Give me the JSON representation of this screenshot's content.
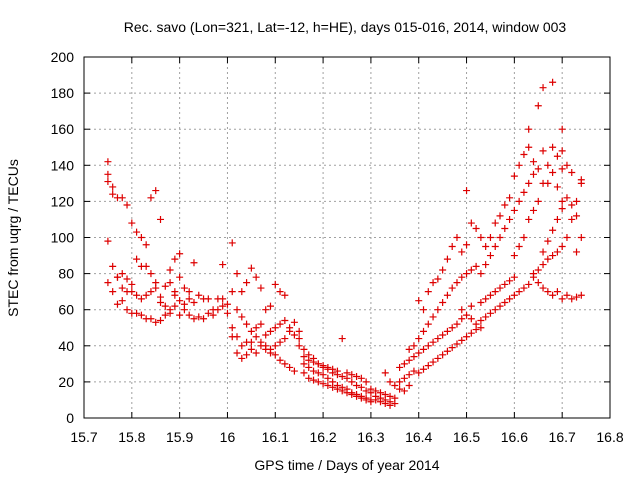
{
  "chart_data": {
    "type": "scatter",
    "title": "Rec. savo (Lon=321, Lat=-12, h=HE), days 015-016, 2014, window 003",
    "xlabel": "GPS time / Days of year 2014",
    "ylabel": "STEC from uqrg / TECUs",
    "xlim": [
      15.7,
      16.8
    ],
    "ylim": [
      0,
      200
    ],
    "xticks": [
      "15.7",
      "15.8",
      "15.9",
      "16",
      "16.1",
      "16.2",
      "16.3",
      "16.4",
      "16.5",
      "16.6",
      "16.7",
      "16.8"
    ],
    "yticks": [
      "0",
      "20",
      "40",
      "60",
      "80",
      "100",
      "120",
      "140",
      "160",
      "180",
      "200"
    ],
    "grid": true,
    "legend": "none",
    "marker": "+",
    "color": "#dd0000",
    "points": [
      [
        15.75,
        142
      ],
      [
        15.75,
        135
      ],
      [
        15.75,
        131
      ],
      [
        15.76,
        128
      ],
      [
        15.76,
        124
      ],
      [
        15.77,
        122
      ],
      [
        15.78,
        122
      ],
      [
        15.79,
        118
      ],
      [
        15.8,
        108
      ],
      [
        15.81,
        103
      ],
      [
        15.82,
        100
      ],
      [
        15.83,
        96
      ],
      [
        15.84,
        122
      ],
      [
        15.85,
        126
      ],
      [
        15.86,
        110
      ],
      [
        15.75,
        98
      ],
      [
        15.76,
        84
      ],
      [
        15.77,
        78
      ],
      [
        15.78,
        80
      ],
      [
        15.79,
        77
      ],
      [
        15.8,
        74
      ],
      [
        15.81,
        88
      ],
      [
        15.82,
        84
      ],
      [
        15.83,
        84
      ],
      [
        15.84,
        80
      ],
      [
        15.85,
        72
      ],
      [
        15.86,
        67
      ],
      [
        15.87,
        73
      ],
      [
        15.88,
        82
      ],
      [
        15.89,
        88
      ],
      [
        15.75,
        75
      ],
      [
        15.76,
        70
      ],
      [
        15.77,
        63
      ],
      [
        15.78,
        65
      ],
      [
        15.79,
        60
      ],
      [
        15.8,
        58
      ],
      [
        15.81,
        58
      ],
      [
        15.82,
        57
      ],
      [
        15.83,
        55
      ],
      [
        15.84,
        55
      ],
      [
        15.85,
        53
      ],
      [
        15.86,
        54
      ],
      [
        15.87,
        57
      ],
      [
        15.88,
        60
      ],
      [
        15.77,
        78
      ],
      [
        15.78,
        72
      ],
      [
        15.79,
        70
      ],
      [
        15.8,
        70
      ],
      [
        15.81,
        68
      ],
      [
        15.82,
        66
      ],
      [
        15.83,
        68
      ],
      [
        15.84,
        70
      ],
      [
        15.85,
        75
      ],
      [
        15.86,
        64
      ],
      [
        15.87,
        62
      ],
      [
        15.88,
        58
      ],
      [
        15.89,
        62
      ],
      [
        15.9,
        57
      ],
      [
        15.91,
        60
      ],
      [
        15.92,
        57
      ],
      [
        15.93,
        55
      ],
      [
        15.94,
        56
      ],
      [
        15.95,
        55
      ],
      [
        15.96,
        58
      ],
      [
        15.97,
        57
      ],
      [
        15.98,
        60
      ],
      [
        15.99,
        62
      ],
      [
        16.0,
        58
      ],
      [
        15.89,
        68
      ],
      [
        15.9,
        65
      ],
      [
        15.91,
        63
      ],
      [
        15.92,
        66
      ],
      [
        15.93,
        64
      ],
      [
        15.94,
        68
      ],
      [
        15.95,
        66
      ],
      [
        15.96,
        66
      ],
      [
        15.97,
        60
      ],
      [
        15.98,
        66
      ],
      [
        15.99,
        66
      ],
      [
        16.0,
        63
      ],
      [
        15.88,
        75
      ],
      [
        15.89,
        70
      ],
      [
        15.9,
        78
      ],
      [
        15.91,
        72
      ],
      [
        15.92,
        70
      ],
      [
        15.9,
        91
      ],
      [
        15.93,
        86
      ],
      [
        15.99,
        85
      ],
      [
        16.01,
        70
      ],
      [
        16.02,
        60
      ],
      [
        16.03,
        56
      ],
      [
        16.04,
        52
      ],
      [
        16.05,
        48
      ],
      [
        16.06,
        45
      ],
      [
        16.07,
        42
      ],
      [
        16.08,
        40
      ],
      [
        16.09,
        38
      ],
      [
        16.1,
        35
      ],
      [
        16.11,
        32
      ],
      [
        16.12,
        30
      ],
      [
        16.13,
        28
      ],
      [
        16.14,
        26
      ],
      [
        16.01,
        97
      ],
      [
        16.02,
        80
      ],
      [
        16.03,
        70
      ],
      [
        16.04,
        75
      ],
      [
        16.05,
        83
      ],
      [
        16.06,
        78
      ],
      [
        16.07,
        72
      ],
      [
        16.08,
        60
      ],
      [
        16.09,
        62
      ],
      [
        16.1,
        74
      ],
      [
        16.11,
        70
      ],
      [
        16.12,
        68
      ],
      [
        16.01,
        50
      ],
      [
        16.02,
        45
      ],
      [
        16.03,
        40
      ],
      [
        16.04,
        42
      ],
      [
        16.05,
        38
      ],
      [
        16.06,
        36
      ],
      [
        16.07,
        40
      ],
      [
        16.08,
        38
      ],
      [
        16.09,
        36
      ],
      [
        16.1,
        40
      ],
      [
        16.11,
        42
      ],
      [
        16.12,
        44
      ],
      [
        16.13,
        48
      ],
      [
        16.14,
        53
      ],
      [
        16.15,
        48
      ],
      [
        16.01,
        45
      ],
      [
        16.02,
        36
      ],
      [
        16.03,
        33
      ],
      [
        16.04,
        35
      ],
      [
        16.05,
        42
      ],
      [
        16.06,
        50
      ],
      [
        16.07,
        52
      ],
      [
        16.08,
        46
      ],
      [
        16.09,
        48
      ],
      [
        16.1,
        50
      ],
      [
        16.11,
        52
      ],
      [
        16.12,
        54
      ],
      [
        16.13,
        50
      ],
      [
        16.14,
        46
      ],
      [
        16.15,
        44
      ],
      [
        16.16,
        38
      ],
      [
        16.17,
        35
      ],
      [
        16.18,
        33
      ],
      [
        16.19,
        30
      ],
      [
        16.2,
        28
      ],
      [
        16.21,
        27
      ],
      [
        16.22,
        25
      ],
      [
        16.23,
        24
      ],
      [
        16.24,
        23
      ],
      [
        16.25,
        22
      ],
      [
        16.26,
        20
      ],
      [
        16.27,
        18
      ],
      [
        16.28,
        17
      ],
      [
        16.29,
        15
      ],
      [
        16.3,
        14
      ],
      [
        16.16,
        30
      ],
      [
        16.17,
        28
      ],
      [
        16.18,
        26
      ],
      [
        16.19,
        25
      ],
      [
        16.2,
        24
      ],
      [
        16.21,
        22
      ],
      [
        16.22,
        20
      ],
      [
        16.23,
        18
      ],
      [
        16.24,
        17
      ],
      [
        16.25,
        16
      ],
      [
        16.26,
        14
      ],
      [
        16.27,
        13
      ],
      [
        16.28,
        12
      ],
      [
        16.29,
        11
      ],
      [
        16.3,
        10
      ],
      [
        16.16,
        25
      ],
      [
        16.17,
        22
      ],
      [
        16.18,
        21
      ],
      [
        16.19,
        20
      ],
      [
        16.2,
        19
      ],
      [
        16.21,
        18
      ],
      [
        16.22,
        17
      ],
      [
        16.23,
        16
      ],
      [
        16.24,
        15
      ],
      [
        16.25,
        14
      ],
      [
        16.26,
        13
      ],
      [
        16.27,
        12
      ],
      [
        16.28,
        11
      ],
      [
        16.29,
        10
      ],
      [
        16.3,
        9
      ],
      [
        16.15,
        40
      ],
      [
        16.16,
        34
      ],
      [
        16.17,
        32
      ],
      [
        16.18,
        31
      ],
      [
        16.19,
        30
      ],
      [
        16.2,
        29
      ],
      [
        16.21,
        28
      ],
      [
        16.22,
        27
      ],
      [
        16.23,
        26
      ],
      [
        16.24,
        44
      ],
      [
        16.25,
        25
      ],
      [
        16.26,
        24
      ],
      [
        16.27,
        23
      ],
      [
        16.28,
        22
      ],
      [
        16.29,
        20
      ],
      [
        16.3,
        16
      ],
      [
        16.31,
        15
      ],
      [
        16.32,
        14
      ],
      [
        16.33,
        13
      ],
      [
        16.34,
        12
      ],
      [
        16.35,
        11
      ],
      [
        16.31,
        12
      ],
      [
        16.32,
        11
      ],
      [
        16.33,
        10
      ],
      [
        16.34,
        9
      ],
      [
        16.35,
        8
      ],
      [
        16.31,
        10
      ],
      [
        16.32,
        9
      ],
      [
        16.33,
        8
      ],
      [
        16.34,
        7
      ],
      [
        16.33,
        25
      ],
      [
        16.34,
        20
      ],
      [
        16.35,
        18
      ],
      [
        16.36,
        16
      ],
      [
        16.37,
        15
      ],
      [
        16.38,
        18
      ],
      [
        16.36,
        20
      ],
      [
        16.37,
        22
      ],
      [
        16.38,
        24
      ],
      [
        16.39,
        26
      ],
      [
        16.36,
        28
      ],
      [
        16.37,
        30
      ],
      [
        16.38,
        32
      ],
      [
        16.39,
        34
      ],
      [
        16.4,
        36
      ],
      [
        16.41,
        38
      ],
      [
        16.42,
        40
      ],
      [
        16.43,
        42
      ],
      [
        16.44,
        44
      ],
      [
        16.45,
        46
      ],
      [
        16.46,
        48
      ],
      [
        16.47,
        50
      ],
      [
        16.48,
        52
      ],
      [
        16.49,
        55
      ],
      [
        16.5,
        57
      ],
      [
        16.38,
        38
      ],
      [
        16.39,
        40
      ],
      [
        16.4,
        44
      ],
      [
        16.41,
        48
      ],
      [
        16.42,
        52
      ],
      [
        16.43,
        56
      ],
      [
        16.44,
        60
      ],
      [
        16.45,
        64
      ],
      [
        16.46,
        68
      ],
      [
        16.47,
        72
      ],
      [
        16.48,
        75
      ],
      [
        16.49,
        78
      ],
      [
        16.5,
        80
      ],
      [
        16.51,
        82
      ],
      [
        16.52,
        84
      ],
      [
        16.4,
        25
      ],
      [
        16.41,
        27
      ],
      [
        16.42,
        29
      ],
      [
        16.43,
        31
      ],
      [
        16.44,
        33
      ],
      [
        16.45,
        35
      ],
      [
        16.46,
        37
      ],
      [
        16.47,
        39
      ],
      [
        16.48,
        41
      ],
      [
        16.49,
        43
      ],
      [
        16.5,
        45
      ],
      [
        16.51,
        47
      ],
      [
        16.52,
        49
      ],
      [
        16.53,
        50
      ],
      [
        16.4,
        65
      ],
      [
        16.41,
        60
      ],
      [
        16.42,
        70
      ],
      [
        16.43,
        75
      ],
      [
        16.44,
        77
      ],
      [
        16.45,
        82
      ],
      [
        16.46,
        88
      ],
      [
        16.47,
        95
      ],
      [
        16.48,
        100
      ],
      [
        16.49,
        92
      ],
      [
        16.5,
        96
      ],
      [
        16.51,
        108
      ],
      [
        16.52,
        105
      ],
      [
        16.53,
        100
      ],
      [
        16.54,
        95
      ],
      [
        16.5,
        126
      ],
      [
        16.49,
        60
      ],
      [
        16.51,
        62
      ],
      [
        16.53,
        64
      ],
      [
        16.54,
        66
      ],
      [
        16.55,
        68
      ],
      [
        16.56,
        70
      ],
      [
        16.57,
        72
      ],
      [
        16.58,
        74
      ],
      [
        16.59,
        76
      ],
      [
        16.6,
        78
      ],
      [
        16.51,
        55
      ],
      [
        16.52,
        52
      ],
      [
        16.53,
        54
      ],
      [
        16.54,
        56
      ],
      [
        16.55,
        58
      ],
      [
        16.56,
        60
      ],
      [
        16.57,
        62
      ],
      [
        16.58,
        64
      ],
      [
        16.59,
        66
      ],
      [
        16.6,
        68
      ],
      [
        16.61,
        70
      ],
      [
        16.62,
        72
      ],
      [
        16.63,
        74
      ],
      [
        16.53,
        80
      ],
      [
        16.54,
        85
      ],
      [
        16.55,
        90
      ],
      [
        16.56,
        95
      ],
      [
        16.57,
        100
      ],
      [
        16.58,
        105
      ],
      [
        16.59,
        110
      ],
      [
        16.6,
        115
      ],
      [
        16.61,
        120
      ],
      [
        16.62,
        125
      ],
      [
        16.63,
        130
      ],
      [
        16.64,
        135
      ],
      [
        16.55,
        100
      ],
      [
        16.56,
        108
      ],
      [
        16.57,
        112
      ],
      [
        16.58,
        118
      ],
      [
        16.59,
        122
      ],
      [
        16.6,
        134
      ],
      [
        16.61,
        140
      ],
      [
        16.62,
        146
      ],
      [
        16.63,
        150
      ],
      [
        16.64,
        142
      ],
      [
        16.65,
        138
      ],
      [
        16.6,
        90
      ],
      [
        16.61,
        95
      ],
      [
        16.62,
        100
      ],
      [
        16.63,
        110
      ],
      [
        16.64,
        115
      ],
      [
        16.65,
        120
      ],
      [
        16.66,
        130
      ],
      [
        16.67,
        140
      ],
      [
        16.68,
        150
      ],
      [
        16.69,
        145
      ],
      [
        16.7,
        138
      ],
      [
        16.63,
        160
      ],
      [
        16.65,
        173
      ],
      [
        16.66,
        183
      ],
      [
        16.68,
        186
      ],
      [
        16.7,
        160
      ],
      [
        16.66,
        148
      ],
      [
        16.67,
        130
      ],
      [
        16.68,
        136
      ],
      [
        16.69,
        128
      ],
      [
        16.7,
        120
      ],
      [
        16.64,
        80
      ],
      [
        16.65,
        82
      ],
      [
        16.66,
        85
      ],
      [
        16.67,
        88
      ],
      [
        16.68,
        90
      ],
      [
        16.69,
        92
      ],
      [
        16.7,
        95
      ],
      [
        16.71,
        100
      ],
      [
        16.72,
        110
      ],
      [
        16.73,
        120
      ],
      [
        16.74,
        130
      ],
      [
        16.64,
        78
      ],
      [
        16.65,
        75
      ],
      [
        16.66,
        72
      ],
      [
        16.67,
        70
      ],
      [
        16.68,
        68
      ],
      [
        16.69,
        70
      ],
      [
        16.7,
        66
      ],
      [
        16.71,
        68
      ],
      [
        16.72,
        66
      ],
      [
        16.73,
        67
      ],
      [
        16.74,
        68
      ],
      [
        16.66,
        92
      ],
      [
        16.67,
        98
      ],
      [
        16.68,
        104
      ],
      [
        16.69,
        110
      ],
      [
        16.7,
        116
      ],
      [
        16.71,
        122
      ],
      [
        16.72,
        118
      ],
      [
        16.73,
        112
      ],
      [
        16.74,
        132
      ],
      [
        16.73,
        92
      ],
      [
        16.74,
        100
      ],
      [
        16.72,
        136
      ],
      [
        16.71,
        140
      ],
      [
        16.7,
        148
      ]
    ]
  }
}
